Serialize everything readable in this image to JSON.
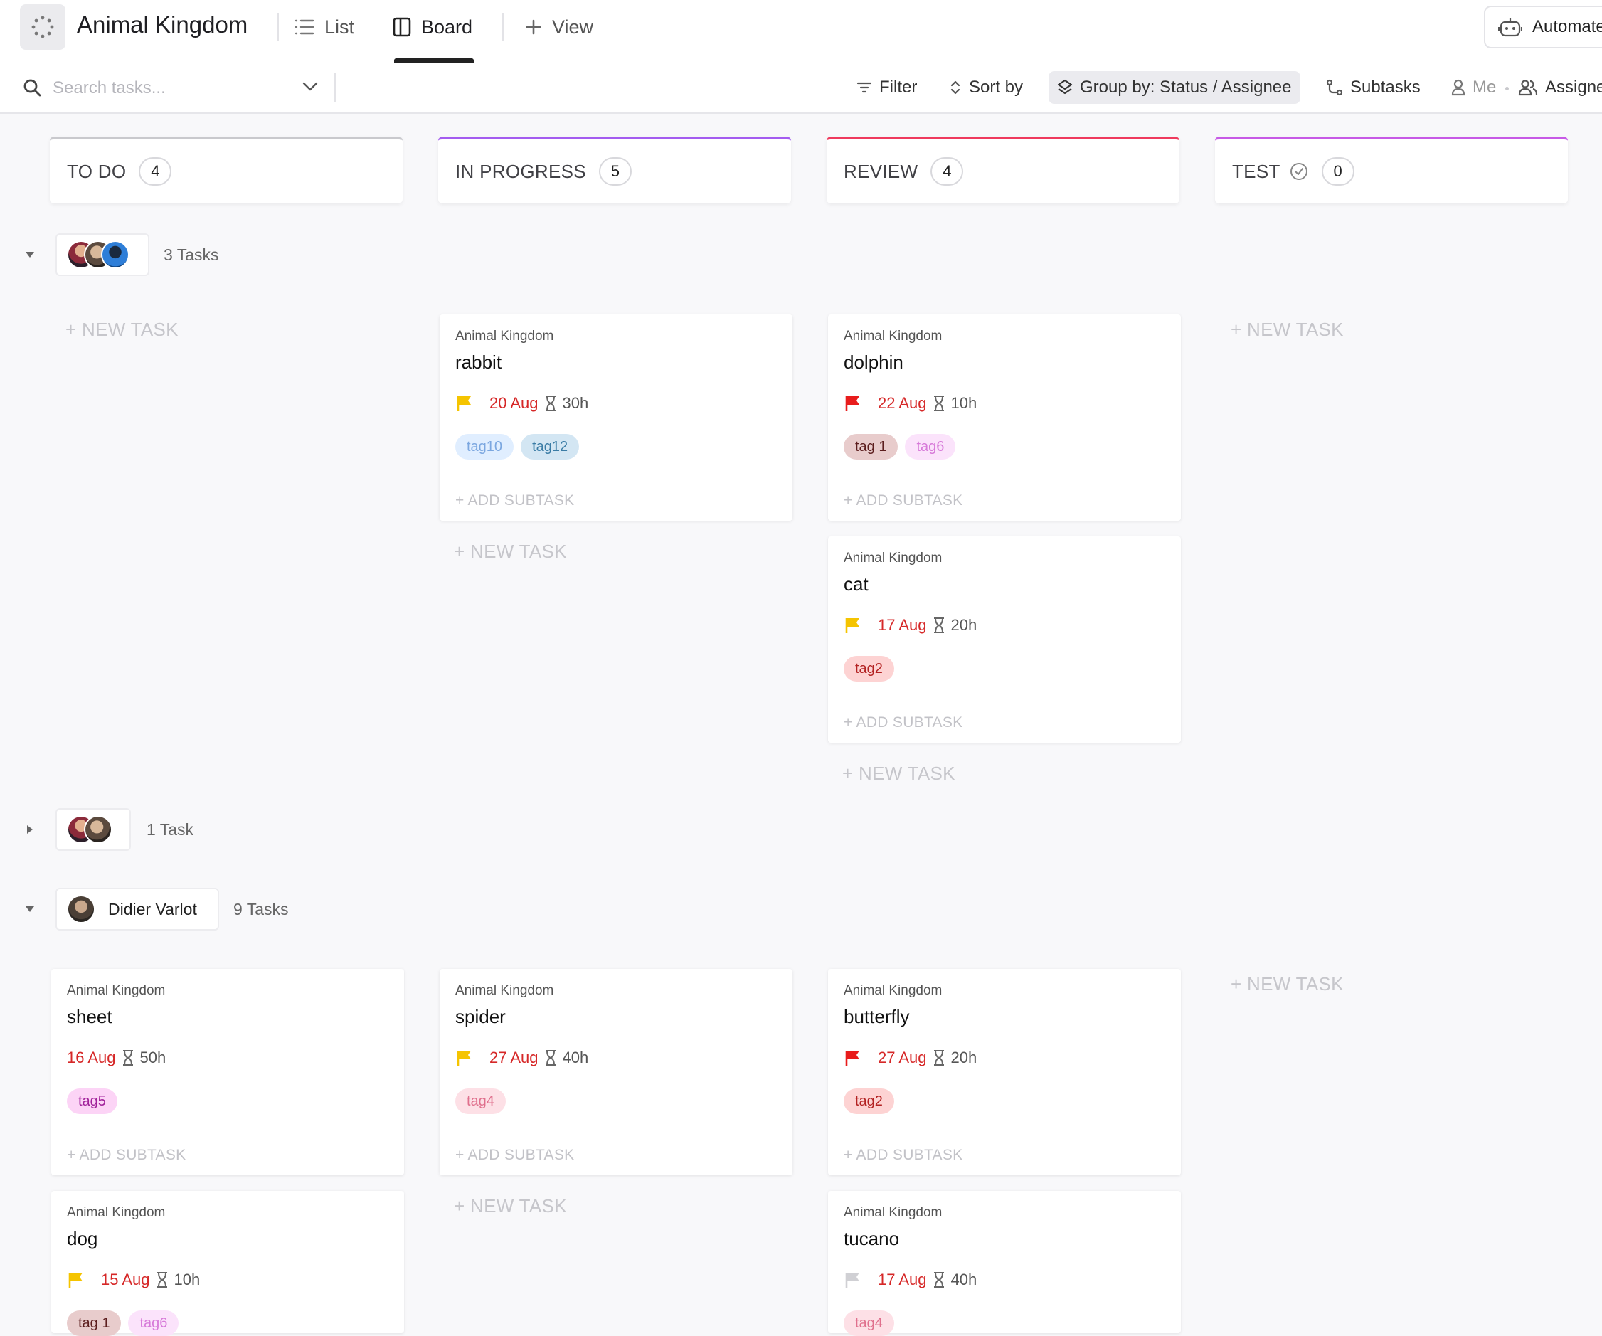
{
  "header": {
    "title": "Animal Kingdom",
    "tabs": [
      {
        "label": "List",
        "icon": "list-icon"
      },
      {
        "label": "Board",
        "icon": "board-icon",
        "active": true
      },
      {
        "label": "View",
        "icon": "plus-icon"
      }
    ],
    "automate_label": "Automate"
  },
  "toolbar": {
    "search_placeholder": "Search tasks...",
    "filter_label": "Filter",
    "sort_label": "Sort by",
    "group_by_label": "Group by: Status / Assignee",
    "subtasks_label": "Subtasks",
    "me_label": "Me",
    "assignees_label": "Assigne"
  },
  "columns": [
    {
      "name": "TO DO",
      "count": "4",
      "color": "#c9c9cd"
    },
    {
      "name": "IN PROGRESS",
      "count": "5",
      "color": "#a45cf0"
    },
    {
      "name": "REVIEW",
      "count": "4",
      "color": "#ef3a5d"
    },
    {
      "name": "TEST",
      "count": "0",
      "color": "#c75ae6"
    }
  ],
  "groups": [
    {
      "count_label": "3 Tasks",
      "expanded": true
    },
    {
      "count_label": "1 Task",
      "expanded": false
    },
    {
      "assignee": "Didier Varlot",
      "count_label": "9 Tasks",
      "expanded": true
    }
  ],
  "new_task_label": "+ NEW TASK",
  "add_subtask_label": "+ ADD SUBTASK",
  "cards": [
    {
      "list": "Animal Kingdom",
      "title": "rabbit",
      "due": "20 Aug",
      "estimate": "30h",
      "priority_color": "#f5c400",
      "tags": [
        {
          "label": "tag10",
          "bg": "#e0eeff",
          "fg": "#7ba7e0"
        },
        {
          "label": "tag12",
          "bg": "#d3e6f3",
          "fg": "#3a7ca5"
        }
      ]
    },
    {
      "list": "Animal Kingdom",
      "title": "dolphin",
      "due": "22 Aug",
      "estimate": "10h",
      "priority_color": "#e81c1c",
      "tags": [
        {
          "label": "tag 1",
          "bg": "#e8cccc",
          "fg": "#5c1e1e"
        },
        {
          "label": "tag6",
          "bg": "#fbe3fb",
          "fg": "#d77ad9"
        }
      ]
    },
    {
      "list": "Animal Kingdom",
      "title": "cat",
      "due": "17 Aug",
      "estimate": "20h",
      "priority_color": "#f5c400",
      "tags": [
        {
          "label": "tag2",
          "bg": "#fdd3d3",
          "fg": "#b32222"
        }
      ]
    },
    {
      "list": "Animal Kingdom",
      "title": "sheet",
      "due": "16 Aug",
      "estimate": "50h",
      "priority_color": "",
      "tags": [
        {
          "label": "tag5",
          "bg": "#fcd4f6",
          "fg": "#a0229a"
        }
      ]
    },
    {
      "list": "Animal Kingdom",
      "title": "spider",
      "due": "27 Aug",
      "estimate": "40h",
      "priority_color": "#f5c400",
      "tags": [
        {
          "label": "tag4",
          "bg": "#fde0e6",
          "fg": "#e0708d"
        }
      ]
    },
    {
      "list": "Animal Kingdom",
      "title": "butterfly",
      "due": "27 Aug",
      "estimate": "20h",
      "priority_color": "#e81c1c",
      "tags": [
        {
          "label": "tag2",
          "bg": "#fdd3d3",
          "fg": "#b32222"
        }
      ]
    },
    {
      "list": "Animal Kingdom",
      "title": "dog",
      "due": "15 Aug",
      "estimate": "10h",
      "priority_color": "#f5c400",
      "tags": [
        {
          "label": "tag 1",
          "bg": "#e8cccc",
          "fg": "#5c1e1e"
        },
        {
          "label": "tag6",
          "bg": "#fbe3fb",
          "fg": "#d77ad9"
        }
      ]
    },
    {
      "list": "Animal Kingdom",
      "title": "tucano",
      "due": "17 Aug",
      "estimate": "40h",
      "priority_color": "#d0d0d4",
      "tags": [
        {
          "label": "tag4",
          "bg": "#fde0e6",
          "fg": "#e0708d"
        }
      ]
    }
  ]
}
